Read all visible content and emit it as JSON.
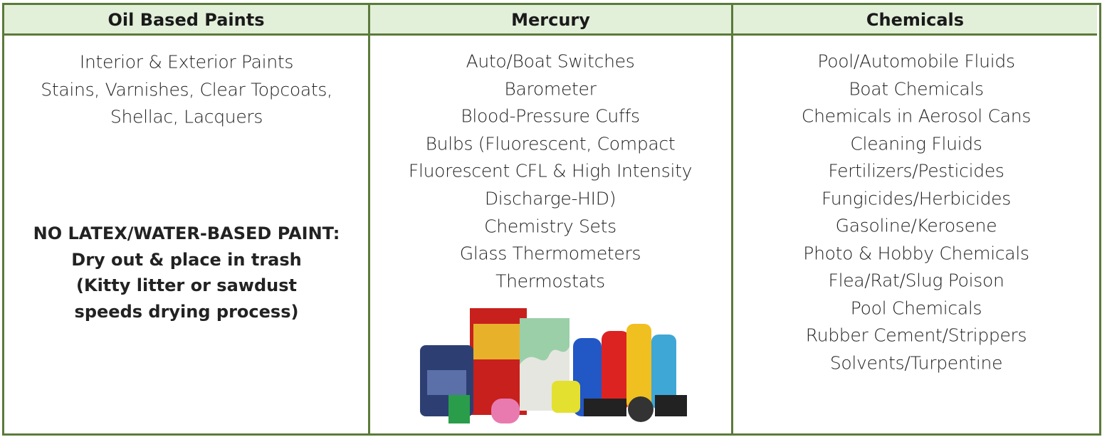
{
  "table": {
    "headers": [
      "Oil Based Paints",
      "Mercury",
      "Chemicals"
    ],
    "columns": [
      {
        "items": [
          "Interior & Exterior Paints",
          "Stains, Varnishes, Clear Topcoats,",
          "Shellac, Lacquers"
        ],
        "note": [
          "NO LATEX/WATER-BASED PAINT:",
          "Dry out & place in trash",
          "(Kitty litter or sawdust",
          "speeds drying process)"
        ]
      },
      {
        "items": [
          "Auto/Boat Switches",
          "Barometer",
          "Blood-Pressure Cuffs",
          "Bulbs (Fluorescent, Compact",
          "Fluorescent CFL & High Intensity",
          "Discharge-HID)",
          "Chemistry Sets",
          "Glass Thermometers",
          "Thermostats"
        ]
      },
      {
        "items": [
          "Pool/Automobile Fluids",
          "Boat Chemicals",
          "Chemicals in Aerosol Cans",
          "Cleaning Fluids",
          "Fertilizers/Pesticides",
          "Fungicides/Herbicides",
          "Gasoline/Kerosene",
          "Photo & Hobby Chemicals",
          "Flea/Rat/Slug Poison",
          "Pool Chemicals",
          "Rubber Cement/Strippers",
          "Solvents/Turpentine"
        ]
      }
    ]
  }
}
